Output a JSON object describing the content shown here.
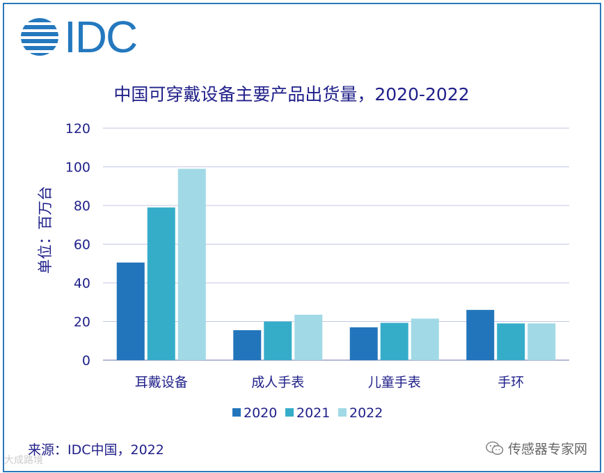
{
  "logo": {
    "text": "IDC"
  },
  "chart_data": {
    "type": "bar",
    "title": "中国可穿戴设备主要产品出货量，2020-2022",
    "ylabel": "单位：百万台",
    "xlabel": "",
    "ylim": [
      0,
      120
    ],
    "yticks": [
      0,
      20,
      40,
      60,
      80,
      100,
      120
    ],
    "grid": true,
    "legend_position": "bottom",
    "categories": [
      "耳戴设备",
      "成人手表",
      "儿童手表",
      "手环"
    ],
    "series": [
      {
        "name": "2020",
        "color": "#2375bb",
        "values": [
          50.5,
          15.5,
          17,
          26
        ]
      },
      {
        "name": "2021",
        "color": "#35adc9",
        "values": [
          79,
          20,
          19.3,
          19
        ]
      },
      {
        "name": "2022",
        "color": "#a1d9e6",
        "values": [
          99,
          23.5,
          21.5,
          19
        ]
      }
    ]
  },
  "source": "来源：IDC中国，2022",
  "watermark": {
    "right_text": "传感器专家网",
    "left_text": "大成路境",
    "right_icon": "wechat-icon"
  }
}
